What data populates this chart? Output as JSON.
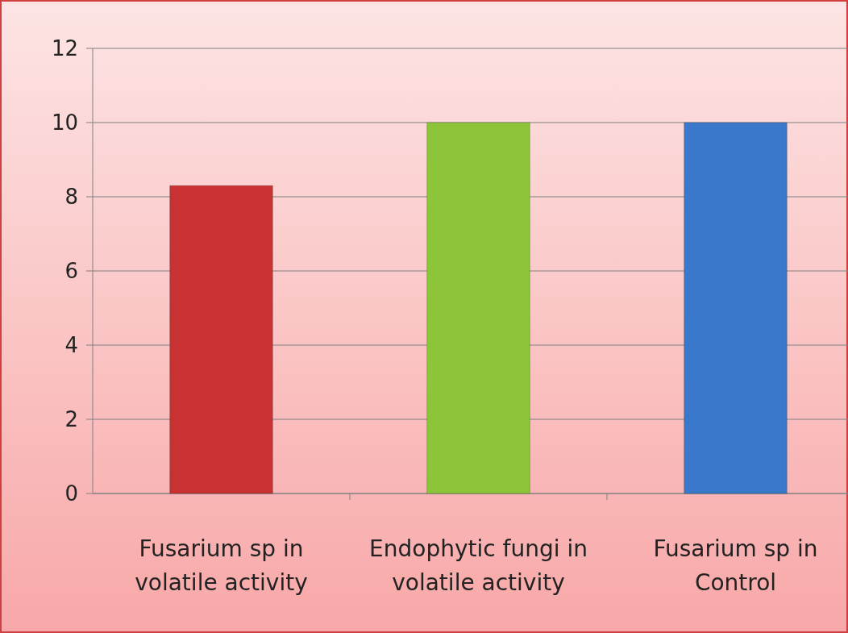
{
  "chart_data": {
    "type": "bar",
    "categories": [
      "Fusarium sp in volatile activity",
      "Endophytic fungi in volatile activity",
      "Fusarium sp in Control"
    ],
    "values": [
      8.3,
      10,
      10
    ],
    "colors": [
      "#c83232",
      "#8cc43a",
      "#3a78cc"
    ],
    "ylim": [
      0,
      12
    ],
    "yticks": [
      0,
      2,
      4,
      6,
      8,
      10,
      12
    ],
    "grid": "y"
  }
}
